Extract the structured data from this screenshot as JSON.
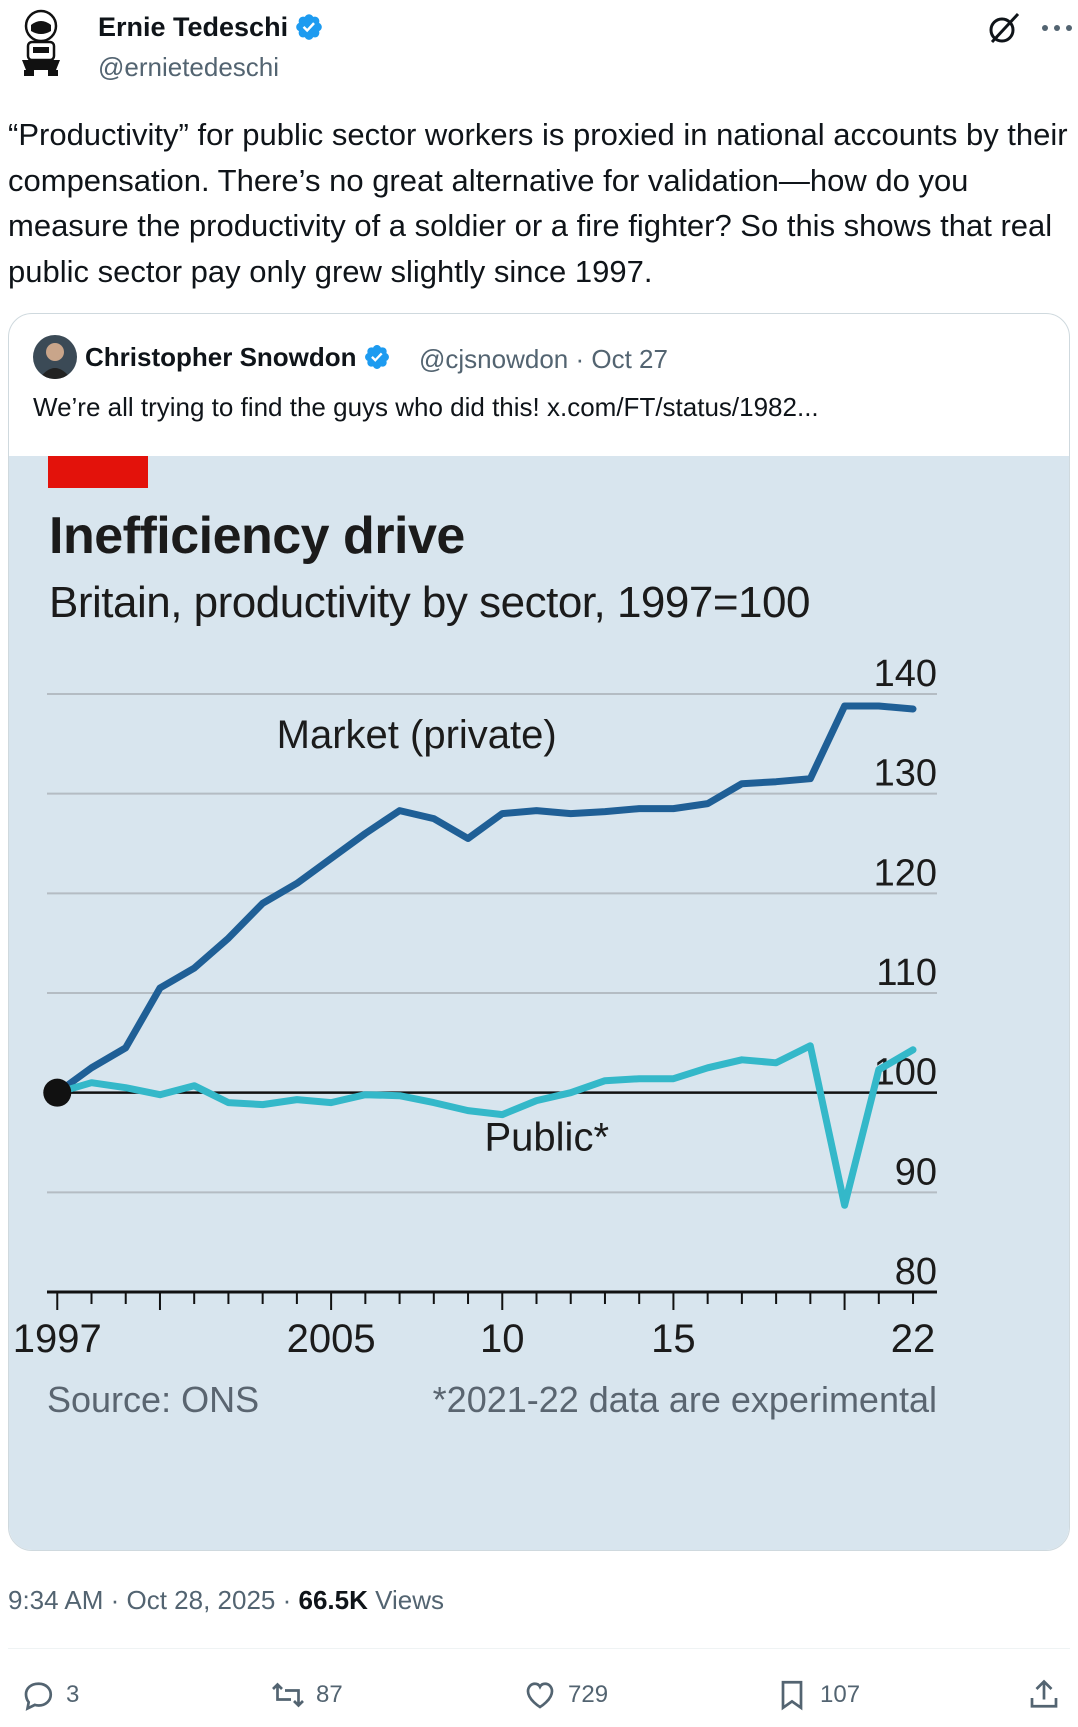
{
  "author": {
    "name": "Ernie Tedeschi",
    "handle": "@ernietedeschi",
    "text": "“Productivity” for public sector workers is proxied in national accounts by their compensation. There’s no great alternative for validation—how do you measure the productivity of a soldier or a fire fighter? So this shows that real public sector pay only grew slightly since 1997."
  },
  "quote": {
    "name": "Christopher Snowdon",
    "handle_date": "@cjsnowdon · Oct 27",
    "text": "We’re all trying to find the guys who did this!  x.com/FT/status/1982..."
  },
  "chart_data": {
    "type": "line",
    "title": "Inefficiency drive",
    "subtitle": "Britain, productivity by sector, 1997=100",
    "ylim": [
      80,
      140
    ],
    "yticks": [
      "140",
      "130",
      "120",
      "110",
      "100",
      "90",
      "80"
    ],
    "xticks": [
      "1997",
      "2005",
      "10",
      "15",
      "22"
    ],
    "series": [
      {
        "name": "Market (private)",
        "color": "#1f5f96",
        "points": [
          [
            1997,
            100
          ],
          [
            1998,
            102.5
          ],
          [
            1999,
            104.5
          ],
          [
            2000,
            110.5
          ],
          [
            2001,
            112.5
          ],
          [
            2002,
            115.5
          ],
          [
            2003,
            119
          ],
          [
            2004,
            121
          ],
          [
            2005,
            123.5
          ],
          [
            2006,
            126
          ],
          [
            2007,
            128.3
          ],
          [
            2008,
            127.5
          ],
          [
            2009,
            125.5
          ],
          [
            2010,
            128
          ],
          [
            2011,
            128.3
          ],
          [
            2012,
            128
          ],
          [
            2013,
            128.2
          ],
          [
            2014,
            128.5
          ],
          [
            2015,
            128.5
          ],
          [
            2016,
            129
          ],
          [
            2017,
            131
          ],
          [
            2018,
            131.2
          ],
          [
            2019,
            131.5
          ],
          [
            2020,
            138.8
          ],
          [
            2021,
            138.8
          ],
          [
            2022,
            138.5
          ]
        ]
      },
      {
        "name": "Public*",
        "color": "#34b8c9",
        "points": [
          [
            1997,
            100
          ],
          [
            1998,
            101
          ],
          [
            1999,
            100.5
          ],
          [
            2000,
            99.8
          ],
          [
            2001,
            100.7
          ],
          [
            2002,
            99
          ],
          [
            2003,
            98.8
          ],
          [
            2004,
            99.3
          ],
          [
            2005,
            99
          ],
          [
            2006,
            99.8
          ],
          [
            2007,
            99.7
          ],
          [
            2008,
            99
          ],
          [
            2009,
            98.2
          ],
          [
            2010,
            97.8
          ],
          [
            2011,
            99.2
          ],
          [
            2012,
            100
          ],
          [
            2013,
            101.2
          ],
          [
            2014,
            101.4
          ],
          [
            2015,
            101.4
          ],
          [
            2016,
            102.5
          ],
          [
            2017,
            103.3
          ],
          [
            2018,
            103
          ],
          [
            2019,
            104.7
          ],
          [
            2020,
            88.7
          ],
          [
            2021,
            102.3
          ],
          [
            2022,
            104.3
          ]
        ]
      }
    ],
    "source": "Source: ONS",
    "note": "*2021-22 data are experimental"
  },
  "meta": {
    "time": "9:34 AM · Oct 28, 2025 · ",
    "views_count": "66.5K",
    "views_label": " Views"
  },
  "actions": {
    "replies": "3",
    "reposts": "87",
    "likes": "729",
    "bookmarks": "107"
  },
  "colors": {
    "verified": "#1d9bf0",
    "chart_bg": "#d8e5ee",
    "accent_red": "#e3120b"
  }
}
